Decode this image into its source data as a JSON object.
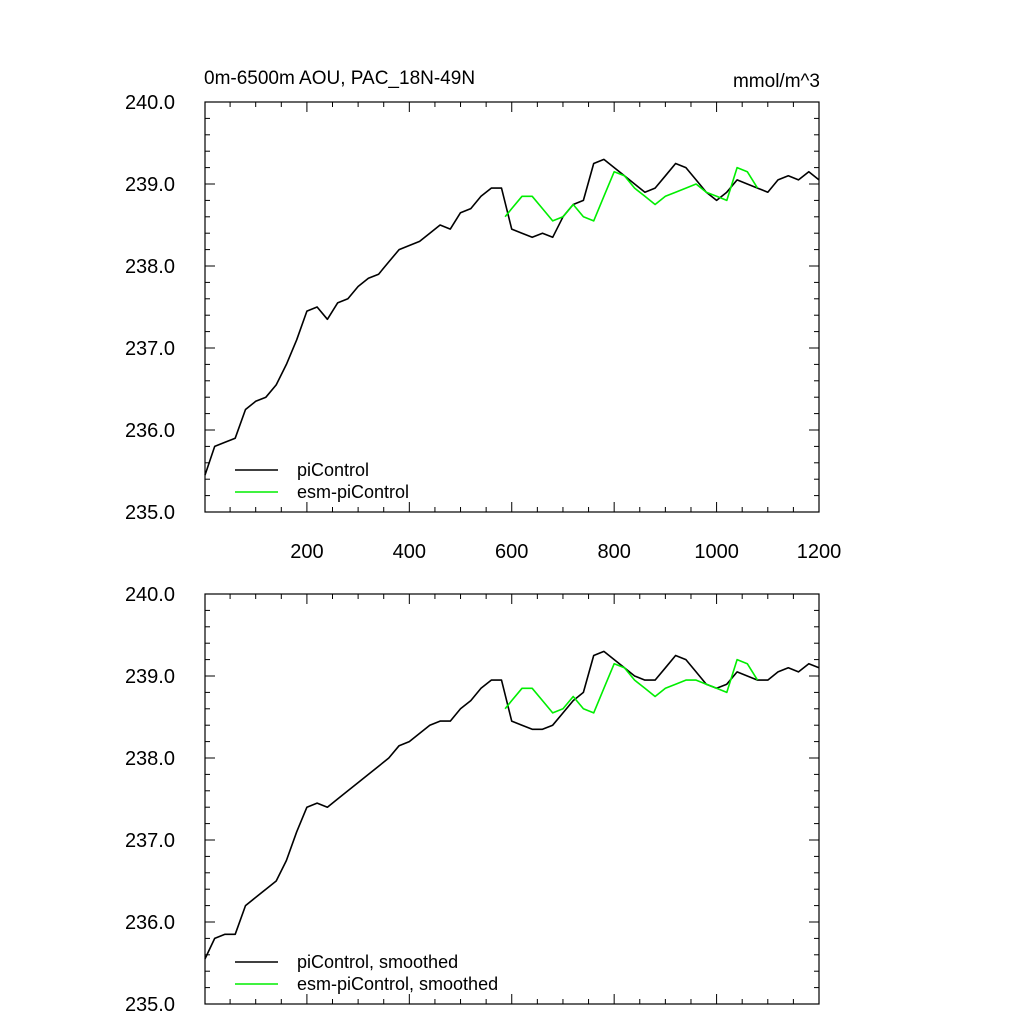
{
  "chart_data": [
    {
      "type": "line",
      "title": "0m-6500m AOU, PAC_18N-49N",
      "units": "mmol/m^3",
      "xlabel": "",
      "ylabel": "",
      "xlim": [
        1,
        1200
      ],
      "ylim": [
        235.0,
        240.0
      ],
      "x_ticks": [
        200,
        400,
        600,
        800,
        1000,
        1200
      ],
      "x_tick_labels": [
        "200",
        "400",
        "600",
        "800",
        "1000",
        "1200"
      ],
      "y_ticks": [
        235.0,
        236.0,
        237.0,
        238.0,
        239.0,
        240.0
      ],
      "y_tick_labels": [
        "235.0",
        "236.0",
        "237.0",
        "238.0",
        "239.0",
        "240.0"
      ],
      "legend_position": "bottom-left",
      "series": [
        {
          "name": "piControl",
          "color": "#000000",
          "x": [
            1,
            20,
            40,
            60,
            80,
            100,
            120,
            140,
            160,
            180,
            200,
            220,
            240,
            260,
            280,
            300,
            320,
            340,
            360,
            380,
            400,
            420,
            440,
            460,
            480,
            500,
            520,
            540,
            560,
            580,
            600,
            620,
            640,
            660,
            680,
            700,
            720,
            740,
            760,
            780,
            800,
            820,
            840,
            860,
            880,
            900,
            920,
            940,
            960,
            980,
            1000,
            1020,
            1040,
            1060,
            1080,
            1100,
            1120,
            1140,
            1160,
            1180,
            1200
          ],
          "values": [
            235.45,
            235.8,
            235.85,
            235.9,
            236.25,
            236.35,
            236.4,
            236.55,
            236.8,
            237.1,
            237.45,
            237.5,
            237.35,
            237.55,
            237.6,
            237.75,
            237.85,
            237.9,
            238.05,
            238.2,
            238.25,
            238.3,
            238.4,
            238.5,
            238.45,
            238.65,
            238.7,
            238.85,
            238.95,
            238.95,
            238.45,
            238.4,
            238.35,
            238.4,
            238.35,
            238.6,
            238.75,
            238.8,
            239.25,
            239.3,
            239.2,
            239.1,
            239.0,
            238.9,
            238.95,
            239.1,
            239.25,
            239.2,
            239.05,
            238.9,
            238.8,
            238.9,
            239.05,
            239.0,
            238.95,
            238.9,
            239.05,
            239.1,
            239.05,
            239.15,
            239.05
          ]
        },
        {
          "name": "esm-piControl",
          "color": "#00ee00",
          "x": [
            587,
            600,
            620,
            640,
            660,
            680,
            700,
            720,
            740,
            760,
            780,
            800,
            820,
            840,
            860,
            880,
            900,
            920,
            940,
            960,
            980,
            1000,
            1020,
            1040,
            1060,
            1080
          ],
          "values": [
            238.6,
            238.7,
            238.85,
            238.85,
            238.7,
            238.55,
            238.6,
            238.75,
            238.6,
            238.55,
            238.85,
            239.15,
            239.1,
            238.95,
            238.85,
            238.75,
            238.85,
            238.9,
            238.95,
            239.0,
            238.9,
            238.85,
            238.8,
            239.2,
            239.15,
            238.95
          ]
        }
      ]
    },
    {
      "type": "line",
      "title": "",
      "xlabel": "",
      "ylabel": "",
      "xlim": [
        1,
        1200
      ],
      "ylim": [
        235.0,
        240.0
      ],
      "x_ticks": [
        200,
        400,
        600,
        800,
        1000,
        1200
      ],
      "y_ticks": [
        235.0,
        236.0,
        237.0,
        238.0,
        239.0,
        240.0
      ],
      "y_tick_labels": [
        "235.0",
        "236.0",
        "237.0",
        "238.0",
        "239.0",
        "240.0"
      ],
      "legend_position": "bottom-left",
      "series": [
        {
          "name": "piControl, smoothed",
          "color": "#000000",
          "x": [
            1,
            20,
            40,
            60,
            80,
            100,
            120,
            140,
            160,
            180,
            200,
            220,
            240,
            260,
            280,
            300,
            320,
            340,
            360,
            380,
            400,
            420,
            440,
            460,
            480,
            500,
            520,
            540,
            560,
            580,
            600,
            620,
            640,
            660,
            680,
            700,
            720,
            740,
            760,
            780,
            800,
            820,
            840,
            860,
            880,
            900,
            920,
            940,
            960,
            980,
            1000,
            1020,
            1040,
            1060,
            1080,
            1100,
            1120,
            1140,
            1160,
            1180,
            1200
          ],
          "values": [
            235.55,
            235.8,
            235.85,
            235.85,
            236.2,
            236.3,
            236.4,
            236.5,
            236.75,
            237.1,
            237.4,
            237.45,
            237.4,
            237.5,
            237.6,
            237.7,
            237.8,
            237.9,
            238.0,
            238.15,
            238.2,
            238.3,
            238.4,
            238.45,
            238.45,
            238.6,
            238.7,
            238.85,
            238.95,
            238.95,
            238.45,
            238.4,
            238.35,
            238.35,
            238.4,
            238.55,
            238.7,
            238.8,
            239.25,
            239.3,
            239.2,
            239.1,
            239.0,
            238.95,
            238.95,
            239.1,
            239.25,
            239.2,
            239.05,
            238.9,
            238.85,
            238.9,
            239.05,
            239.0,
            238.95,
            238.95,
            239.05,
            239.1,
            239.05,
            239.15,
            239.1
          ]
        },
        {
          "name": "esm-piControl, smoothed",
          "color": "#00ee00",
          "x": [
            587,
            600,
            620,
            640,
            660,
            680,
            700,
            720,
            740,
            760,
            780,
            800,
            820,
            840,
            860,
            880,
            900,
            920,
            940,
            960,
            980,
            1000,
            1020,
            1040,
            1060,
            1080
          ],
          "values": [
            238.6,
            238.7,
            238.85,
            238.85,
            238.7,
            238.55,
            238.6,
            238.75,
            238.6,
            238.55,
            238.85,
            239.15,
            239.1,
            238.95,
            238.85,
            238.75,
            238.85,
            238.9,
            238.95,
            238.95,
            238.9,
            238.85,
            238.8,
            239.2,
            239.15,
            238.95
          ]
        }
      ]
    }
  ]
}
